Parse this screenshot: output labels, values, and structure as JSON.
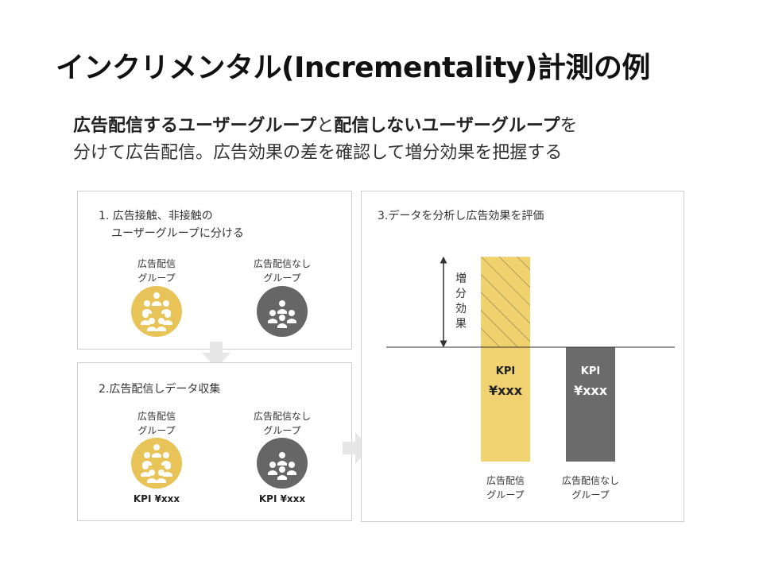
{
  "title": "インクリメンタル(Incrementality)計測の例",
  "description": {
    "line1_part1": "広告配信するユーザーグループ",
    "line1_part2": "と",
    "line1_part3": "配信しないユーザーグループ",
    "line1_part4": "を",
    "line2": "分けて広告配信。広告効果の差を確認して増分効果を把握する"
  },
  "step1": {
    "title_line1": "1. 広告接触、非接触の",
    "title_line2": "ユーザーグループに分ける",
    "group_a": {
      "line1": "広告配信",
      "line2": "グループ"
    },
    "group_b": {
      "line1": "広告配信なし",
      "line2": "グループ"
    }
  },
  "step2": {
    "title": "2.広告配信しデータ収集",
    "group_a": {
      "line1": "広告配信",
      "line2": "グループ",
      "kpi": "KPI ¥xxx"
    },
    "group_b": {
      "line1": "広告配信なし",
      "line2": "グループ",
      "kpi": "KPI ¥xxx"
    }
  },
  "step3": {
    "title": "3.データを分析し広告効果を評価",
    "lift_label": [
      "増",
      "分",
      "効",
      "果"
    ]
  },
  "chart_data": {
    "type": "bar",
    "categories": [
      "広告配信グループ",
      "広告配信なしグループ"
    ],
    "category_lines": [
      [
        "広告配信",
        "グループ"
      ],
      [
        "広告配信なし",
        "グループ"
      ]
    ],
    "bar_labels": [
      [
        "KPI",
        "¥xxx"
      ],
      [
        "KPI",
        "¥xxx"
      ]
    ],
    "values": [
      1.79,
      1.0
    ],
    "baseline": 1.0,
    "colors": {
      "exposed": "#f0d270",
      "control": "#6b6b6b",
      "lift_fill": "#efd26e",
      "lift_hatch": "#8a7a4a"
    },
    "title": "",
    "xlabel": "",
    "ylabel": ""
  },
  "colors": {
    "yellow": "#e8c458",
    "gray": "#666666",
    "arrow": "#e6e6e6"
  },
  "icons": {
    "group_icon": "people-group-icon",
    "arrow_down": "arrow-down-icon",
    "arrow_right": "arrow-right-icon"
  }
}
